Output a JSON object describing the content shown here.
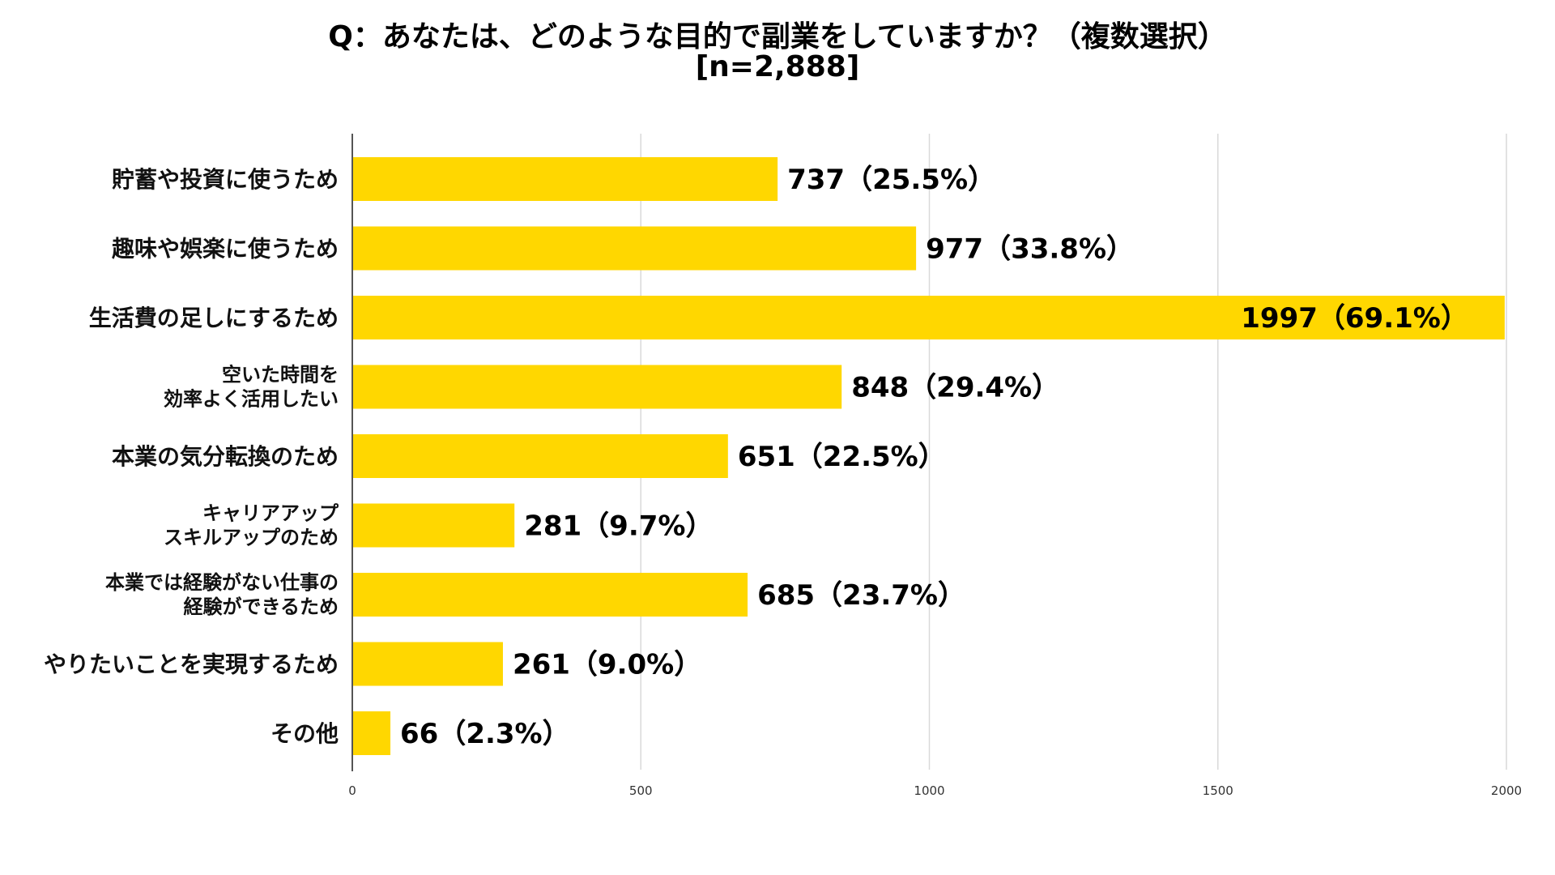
{
  "chart_data": {
    "type": "bar",
    "orientation": "horizontal",
    "title": "Q：あなたは、どのような目的で副業をしていますか？（複数選択）",
    "subtitle": "[n=2,888]",
    "categories": [
      [
        "貯蓄や投資に使うため"
      ],
      [
        "趣味や娯楽に使うため"
      ],
      [
        "生活費の足しにするため"
      ],
      [
        "空いた時間を",
        "効率よく活用したい"
      ],
      [
        "本業の気分転換のため"
      ],
      [
        "キャリアアップ",
        "スキルアップのため"
      ],
      [
        "本業では経験がない仕事の",
        "経験ができるため"
      ],
      [
        "やりたいことを実現するため"
      ],
      [
        "その他"
      ]
    ],
    "values": [
      737,
      977,
      1997,
      848,
      651,
      281,
      685,
      261,
      66
    ],
    "data_labels": [
      "737（25.5%）",
      "977（33.8%）",
      "1997（69.1%）",
      "848（29.4%）",
      "651（22.5%）",
      "281（9.7%）",
      "685（23.7%）",
      "261（9.0%）",
      "66（2.3%）"
    ],
    "xlim": [
      0,
      2000
    ],
    "xticks": [
      "0",
      "500",
      "1000",
      "1500",
      "2000"
    ],
    "xtick_values": [
      0,
      500,
      1000,
      1500,
      2000
    ],
    "grid": true,
    "bar_color": "#FFD700",
    "grid_color": "#d9d9d9",
    "axis_color": "#555555"
  }
}
